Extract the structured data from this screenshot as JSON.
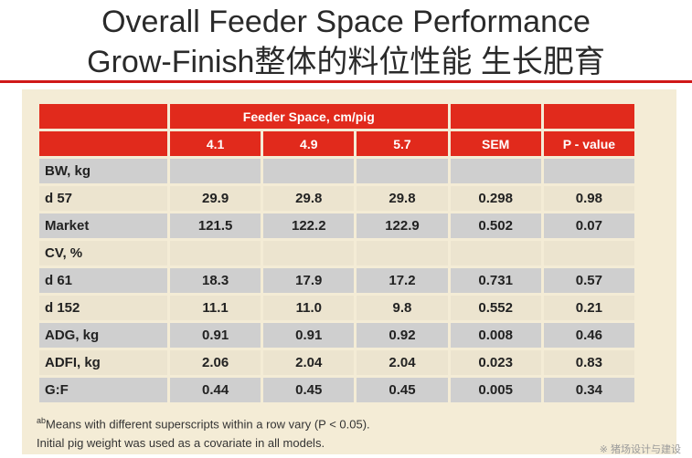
{
  "title_line1": "Overall Feeder Space Performance",
  "title_line2": "Grow-Finish整体的料位性能 生长肥育",
  "table": {
    "group_header": "Feeder Space, cm/pig",
    "columns": [
      "4.1",
      "4.9",
      "5.7",
      "SEM",
      "P - value"
    ],
    "rows": [
      {
        "label": "BW, kg",
        "values": [
          "",
          "",
          "",
          "",
          ""
        ],
        "style": "gray"
      },
      {
        "label": "d 57",
        "values": [
          "29.9",
          "29.8",
          "29.8",
          "0.298",
          "0.98"
        ],
        "style": "light"
      },
      {
        "label": "Market",
        "values": [
          "121.5",
          "122.2",
          "122.9",
          "0.502",
          "0.07"
        ],
        "style": "gray"
      },
      {
        "label": "CV, %",
        "values": [
          "",
          "",
          "",
          "",
          ""
        ],
        "style": "light"
      },
      {
        "label": "d 61",
        "values": [
          "18.3",
          "17.9",
          "17.2",
          "0.731",
          "0.57"
        ],
        "style": "gray"
      },
      {
        "label": "d 152",
        "values": [
          "11.1",
          "11.0",
          "9.8",
          "0.552",
          "0.21"
        ],
        "style": "light"
      },
      {
        "label": "ADG, kg",
        "values": [
          "0.91",
          "0.91",
          "0.92",
          "0.008",
          "0.46"
        ],
        "style": "gray"
      },
      {
        "label": "ADFI, kg",
        "values": [
          "2.06",
          "2.04",
          "2.04",
          "0.023",
          "0.83"
        ],
        "style": "light"
      },
      {
        "label": "G:F",
        "values": [
          "0.44",
          "0.45",
          "0.45",
          "0.005",
          "0.34"
        ],
        "style": "gray"
      }
    ]
  },
  "footnote1_sup": "ab",
  "footnote1_text": "Means with different superscripts within a row vary (P < 0.05).",
  "footnote2": "Initial pig weight was used as a covariate in all models.",
  "watermark": "※ 猪场设计与建设",
  "colors": {
    "header_red": "#e12a1c",
    "rule_red": "#d01818",
    "row_gray": "#cfcfcf",
    "row_light": "#ece4cf",
    "panel": "#f4ecd6"
  }
}
